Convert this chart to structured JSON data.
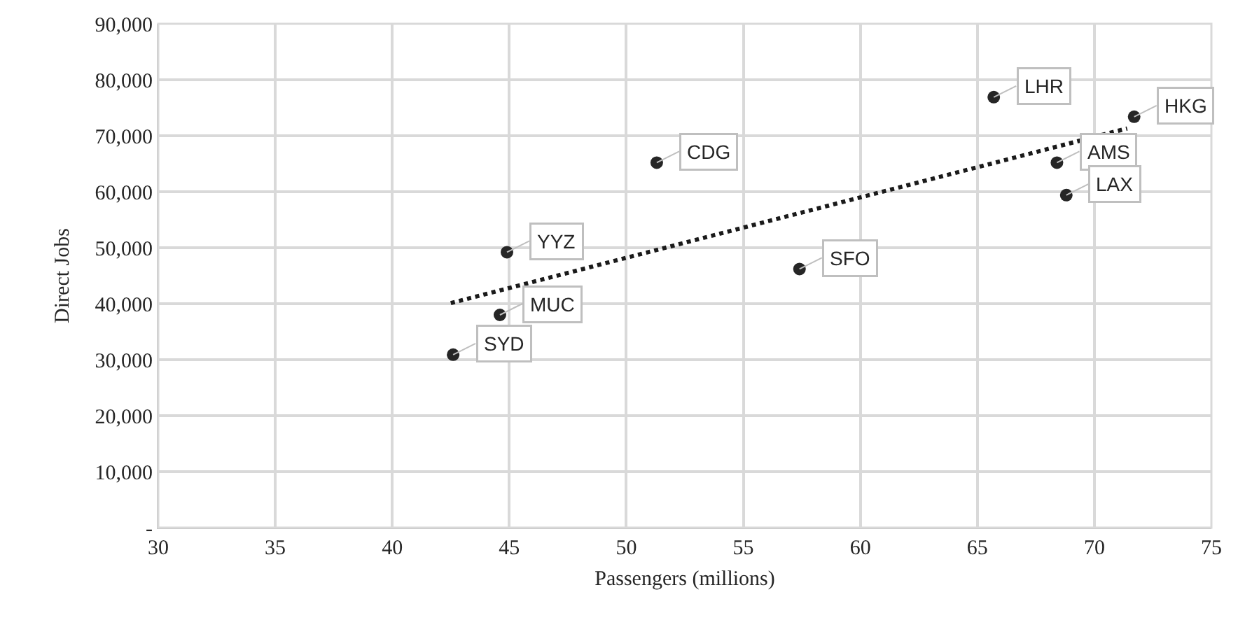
{
  "chart_data": {
    "type": "scatter",
    "xlabel": "Passengers (millions)",
    "ylabel": "Direct Jobs",
    "xlim": [
      30,
      75
    ],
    "xticks": [
      30,
      35,
      40,
      45,
      50,
      55,
      60,
      65,
      70,
      75
    ],
    "ylim": [
      0,
      90000
    ],
    "yticks": [
      {
        "value": 0,
        "label": "-"
      },
      {
        "value": 10000,
        "label": "10,000"
      },
      {
        "value": 20000,
        "label": "20,000"
      },
      {
        "value": 30000,
        "label": "30,000"
      },
      {
        "value": 40000,
        "label": "40,000"
      },
      {
        "value": 50000,
        "label": "50,000"
      },
      {
        "value": 60000,
        "label": "60,000"
      },
      {
        "value": 70000,
        "label": "70,000"
      },
      {
        "value": 80000,
        "label": "80,000"
      },
      {
        "value": 90000,
        "label": "90,000"
      }
    ],
    "grid": true,
    "series": [
      {
        "marker": "circle",
        "color": "#262626",
        "x": [
          42.6,
          44.6,
          44.9,
          51.3,
          57.4,
          65.7,
          68.4,
          68.8,
          71.7
        ],
        "values": [
          30900,
          38000,
          49200,
          65200,
          46200,
          76900,
          65200,
          59400,
          73400
        ]
      },
      {
        "type": "line",
        "marker": "none",
        "color": "#1a1a1a",
        "line_style": "dotted",
        "x": [
          42.5,
          71.4
        ],
        "values": [
          40100,
          71300
        ]
      }
    ],
    "annotations": [
      {
        "text": "SYD",
        "x": 42.6,
        "y": 30900
      },
      {
        "text": "MUC",
        "x": 44.6,
        "y": 38000
      },
      {
        "text": "YYZ",
        "x": 44.9,
        "y": 49200
      },
      {
        "text": "CDG",
        "x": 51.3,
        "y": 65200
      },
      {
        "text": "SFO",
        "x": 57.4,
        "y": 46200
      },
      {
        "text": "LHR",
        "x": 65.7,
        "y": 76900
      },
      {
        "text": "AMS",
        "x": 68.4,
        "y": 65200
      },
      {
        "text": "LAX",
        "x": 68.8,
        "y": 59400
      },
      {
        "text": "HKG",
        "x": 71.7,
        "y": 73400
      }
    ]
  }
}
